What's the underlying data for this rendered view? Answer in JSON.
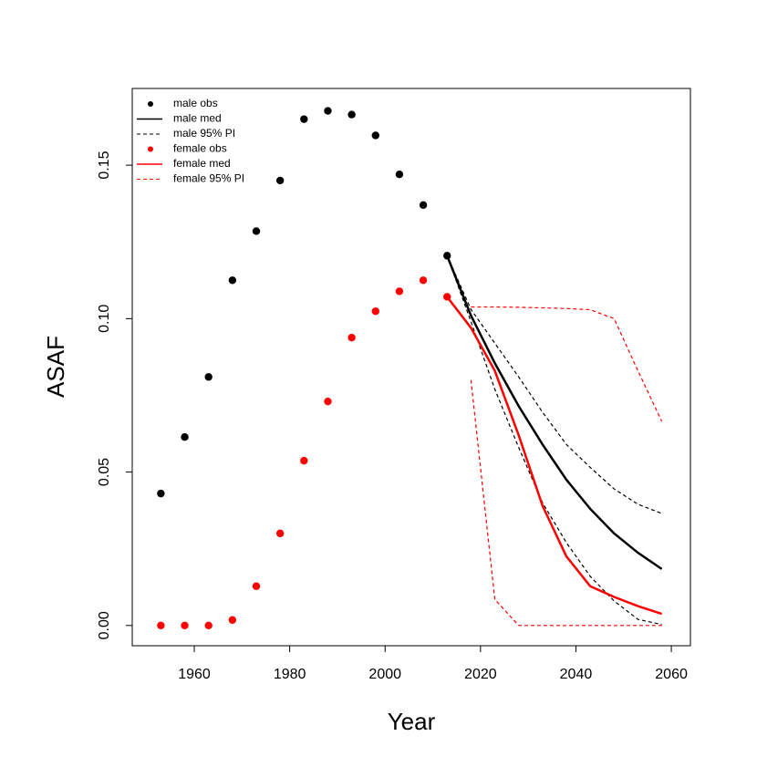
{
  "chart_data": {
    "type": "line",
    "xlabel": "Year",
    "ylabel": "ASAF",
    "x": [
      1953,
      1958,
      1963,
      1968,
      1973,
      1978,
      1983,
      1988,
      1993,
      1998,
      2003,
      2008,
      2013,
      2018,
      2023,
      2028,
      2033,
      2038,
      2043,
      2048,
      2053,
      2058
    ],
    "xlim": [
      1947,
      2064
    ],
    "xticks": [
      1960,
      1980,
      2000,
      2020,
      2040,
      2060
    ],
    "ylim": [
      -0.0066,
      0.175
    ],
    "yticks": [
      {
        "value": 0,
        "label": "0.00"
      },
      {
        "value": 0.05,
        "label": "0.05"
      },
      {
        "value": 0.1,
        "label": "0.10"
      },
      {
        "value": 0.15,
        "label": "0.15"
      }
    ],
    "legend": "top-left",
    "series": [
      {
        "name": "male obs",
        "color": "#000000",
        "style": "points",
        "values": [
          0.043,
          0.0614,
          0.081,
          0.1125,
          0.1285,
          0.145,
          0.165,
          0.1677,
          0.1665,
          0.1597,
          0.147,
          0.137,
          0.1205,
          null,
          null,
          null,
          null,
          null,
          null,
          null,
          null,
          null
        ]
      },
      {
        "name": "male med",
        "color": "#000000",
        "style": "solid",
        "values": [
          null,
          null,
          null,
          null,
          null,
          null,
          null,
          null,
          null,
          null,
          null,
          null,
          0.1205,
          0.101,
          0.0855,
          0.0715,
          0.059,
          0.0475,
          0.038,
          0.03,
          0.0237,
          0.0184
        ]
      },
      {
        "name": "male 95% PI",
        "color": "#000000",
        "style": "dashed",
        "values": [
          null,
          null,
          null,
          null,
          null,
          null,
          null,
          null,
          null,
          null,
          null,
          null,
          0.1205,
          0.103,
          0.092,
          0.081,
          0.0695,
          0.059,
          0.0515,
          0.0445,
          0.0395,
          0.0365
        ],
        "lower": [
          null,
          null,
          null,
          null,
          null,
          null,
          null,
          null,
          null,
          null,
          null,
          null,
          0.1205,
          0.099,
          0.077,
          0.058,
          0.04,
          0.027,
          0.016,
          0.008,
          0.002,
          0.0003
        ]
      },
      {
        "name": "female obs",
        "color": "#ff0000",
        "style": "points",
        "values": [
          0,
          0,
          0,
          0.0018,
          0.0128,
          0.03,
          0.0537,
          0.073,
          0.0938,
          0.1024,
          0.1089,
          0.1125,
          0.1071,
          null,
          null,
          null,
          null,
          null,
          null,
          null,
          null,
          null
        ]
      },
      {
        "name": "female med",
        "color": "#ff0000",
        "style": "solid",
        "values": [
          null,
          null,
          null,
          null,
          null,
          null,
          null,
          null,
          null,
          null,
          null,
          null,
          0.1071,
          0.097,
          0.083,
          0.062,
          0.039,
          0.0225,
          0.0128,
          0.0093,
          0.0063,
          0.0038
        ]
      },
      {
        "name": "female 95% PI",
        "color": "#ff0000",
        "style": "dashed",
        "values": [
          null,
          null,
          null,
          null,
          null,
          null,
          null,
          null,
          null,
          null,
          null,
          null,
          null,
          0.1038,
          0.1038,
          0.1037,
          0.1035,
          0.1033,
          0.1029,
          0.1,
          0.083,
          0.0665
        ],
        "lower": [
          null,
          null,
          null,
          null,
          null,
          null,
          null,
          null,
          null,
          null,
          null,
          null,
          null,
          0.08,
          0.0085,
          0,
          0,
          0,
          0,
          0,
          0,
          0
        ]
      }
    ]
  }
}
